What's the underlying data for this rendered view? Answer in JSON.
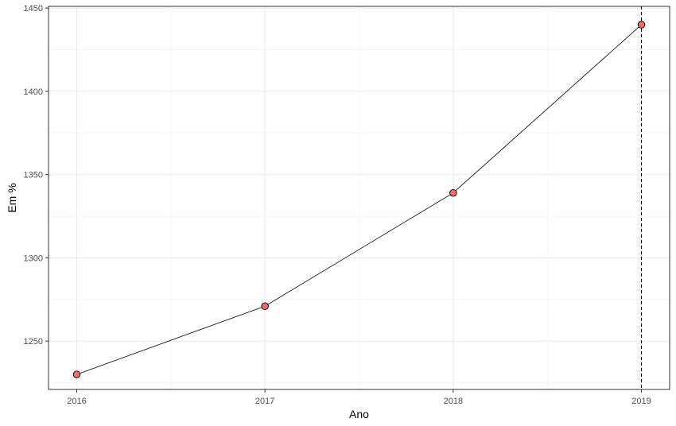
{
  "chart_data": {
    "type": "line",
    "title": "",
    "xlabel": "Ano",
    "ylabel": "Em %",
    "x": [
      2016,
      2017,
      2018,
      2019
    ],
    "values": [
      1230,
      1271,
      1339,
      1440
    ],
    "xlim": [
      2015.85,
      2019.15
    ],
    "ylim": [
      1221,
      1451
    ],
    "x_ticks": [
      "2016",
      "2017",
      "2018",
      "2019"
    ],
    "y_ticks": [
      "1250",
      "1300",
      "1350",
      "1400",
      "1450"
    ],
    "y_tick_values": [
      1250,
      1300,
      1350,
      1400,
      1450
    ],
    "reference_line": {
      "x": 2019,
      "style": "dashed"
    },
    "grid": true,
    "legend": "none",
    "colors": {
      "point_fill": "#f26b6b",
      "point_stroke": "#000000",
      "line": "#000000",
      "grid": "#ebebeb",
      "panel_border": "#333333"
    }
  }
}
